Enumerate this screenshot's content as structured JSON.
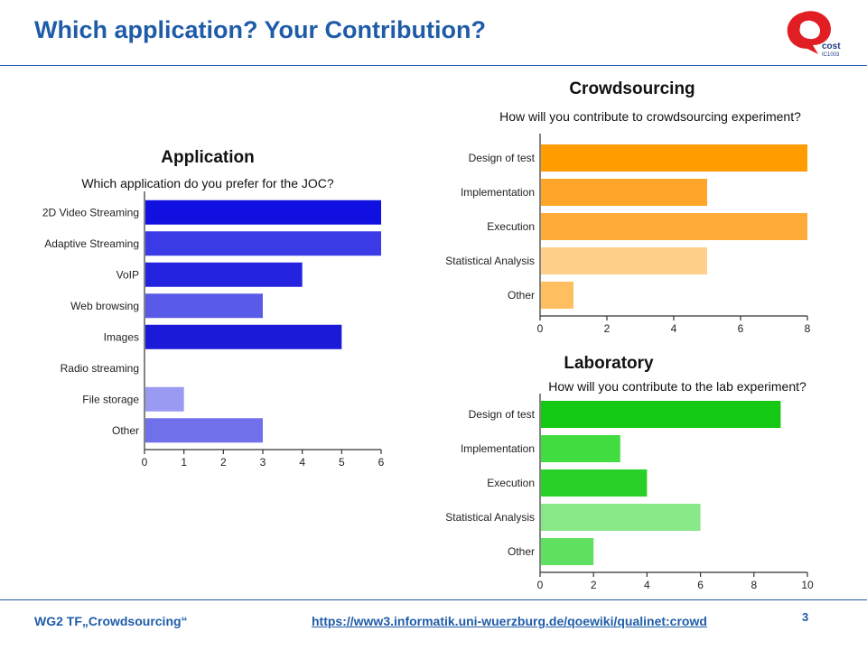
{
  "slide": {
    "title": "Which application? Your Contribution?",
    "footer_left": "WG2 TF„Crowdsourcing“",
    "footer_link": "https://www3.informatik.uni-wuerzburg.de/qoewiki/qualinet:crowd",
    "page_number": "3",
    "logo_text": "cost",
    "logo_subtext": "IC1003"
  },
  "chart_data": [
    {
      "id": "application",
      "type": "bar",
      "orientation": "horizontal",
      "title": "Application",
      "subtitle": "Which application do you prefer for the JOC?",
      "categories": [
        "2D Video Streaming",
        "Adaptive Streaming",
        "VoIP",
        "Web browsing",
        "Images",
        "Radio streaming",
        "File storage",
        "Other"
      ],
      "values": [
        6,
        6,
        4,
        3,
        5,
        0,
        1,
        3
      ],
      "colors": [
        "#1010e0",
        "#3a3ae6",
        "#2323e0",
        "#5a5ae8",
        "#1a1ad8",
        "#8080f0",
        "#9a9af2",
        "#7070ea"
      ],
      "xlim": [
        0,
        6
      ],
      "xticks": [
        0,
        1,
        2,
        3,
        4,
        5,
        6
      ],
      "grid": false
    },
    {
      "id": "crowdsourcing",
      "type": "bar",
      "orientation": "horizontal",
      "title": "Crowdsourcing",
      "subtitle": "How will you contribute to crowdsourcing experiment?",
      "categories": [
        "Design of test",
        "Implementation",
        "Execution",
        "Statistical Analysis",
        "Other"
      ],
      "values": [
        8,
        5,
        8,
        5,
        1
      ],
      "colors": [
        "#ff9c00",
        "#ffa62a",
        "#ffab3a",
        "#ffd08a",
        "#ffbe60"
      ],
      "xlim": [
        0,
        8
      ],
      "xticks": [
        0,
        2,
        4,
        6,
        8
      ],
      "grid": false
    },
    {
      "id": "laboratory",
      "type": "bar",
      "orientation": "horizontal",
      "title": "Laboratory",
      "subtitle": "How will you contribute to the lab experiment?",
      "categories": [
        "Design of test",
        "Implementation",
        "Execution",
        "Statistical Analysis",
        "Other"
      ],
      "values": [
        9,
        3,
        4,
        6,
        2
      ],
      "colors": [
        "#14c814",
        "#40dc40",
        "#28d028",
        "#88e888",
        "#60e060"
      ],
      "xlim": [
        0,
        10
      ],
      "xticks": [
        0,
        2,
        4,
        6,
        8,
        10
      ],
      "grid": false
    }
  ]
}
